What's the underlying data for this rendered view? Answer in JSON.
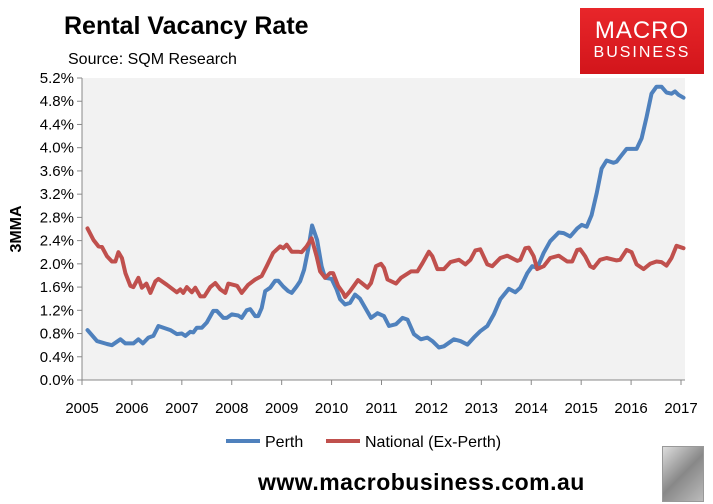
{
  "header": {
    "title": "Rental Vacancy Rate",
    "subtitle": "Source: SQM Research"
  },
  "logo": {
    "line1": "MACRO",
    "line2": "BUSINESS",
    "color": "#e01f25"
  },
  "footer": {
    "url": "www.macrobusiness.com.au"
  },
  "chart_data": {
    "type": "line",
    "title": "Rental Vacancy Rate",
    "xlabel": "",
    "ylabel": "3MMA",
    "xlim": [
      2005,
      2017.05
    ],
    "ylim": [
      0,
      5.2
    ],
    "x_ticks": [
      "2005",
      "2006",
      "2007",
      "2008",
      "2009",
      "2010",
      "2011",
      "2012",
      "2013",
      "2014",
      "2015",
      "2016",
      "2017"
    ],
    "y_ticks": [
      "0.0%",
      "0.4%",
      "0.8%",
      "1.2%",
      "1.6%",
      "2.0%",
      "2.4%",
      "2.8%",
      "3.2%",
      "3.6%",
      "4.0%",
      "4.4%",
      "4.8%",
      "5.2%"
    ],
    "grid": false,
    "legend_position": "bottom",
    "series": [
      {
        "name": "Perth",
        "color": "#4f81bd",
        "x": [
          2005.11,
          2005.3,
          2005.5,
          2005.6,
          2005.77,
          2005.87,
          2006.03,
          2006.13,
          2006.22,
          2006.33,
          2006.43,
          2006.53,
          2006.77,
          2006.9,
          2007.0,
          2007.07,
          2007.17,
          2007.23,
          2007.3,
          2007.4,
          2007.5,
          2007.63,
          2007.7,
          2007.83,
          2007.9,
          2008.0,
          2008.13,
          2008.2,
          2008.3,
          2008.37,
          2008.47,
          2008.53,
          2008.6,
          2008.67,
          2008.77,
          2008.87,
          2008.93,
          2009.03,
          2009.13,
          2009.2,
          2009.3,
          2009.37,
          2009.45,
          2009.53,
          2009.61,
          2009.71,
          2009.8,
          2009.87,
          2010.0,
          2010.1,
          2010.17,
          2010.27,
          2010.37,
          2010.47,
          2010.57,
          2010.79,
          2010.92,
          2011.05,
          2011.15,
          2011.29,
          2011.42,
          2011.52,
          2011.65,
          2011.79,
          2011.92,
          2012.02,
          2012.15,
          2012.25,
          2012.45,
          2012.58,
          2012.72,
          2012.85,
          2012.98,
          2013.12,
          2013.25,
          2013.38,
          2013.55,
          2013.68,
          2013.78,
          2013.92,
          2014.02,
          2014.12,
          2014.25,
          2014.38,
          2014.55,
          2014.65,
          2014.78,
          2014.92,
          2015.01,
          2015.11,
          2015.21,
          2015.31,
          2015.41,
          2015.51,
          2015.65,
          2015.71,
          2015.81,
          2015.91,
          2016.11,
          2016.21,
          2016.31,
          2016.41,
          2016.51,
          2016.61,
          2016.71,
          2016.81,
          2016.88,
          2016.95,
          2017.05
        ],
        "values": [
          0.86,
          0.67,
          0.62,
          0.6,
          0.7,
          0.63,
          0.63,
          0.7,
          0.63,
          0.73,
          0.76,
          0.93,
          0.86,
          0.79,
          0.8,
          0.76,
          0.83,
          0.82,
          0.9,
          0.9,
          0.99,
          1.19,
          1.19,
          1.07,
          1.07,
          1.13,
          1.11,
          1.07,
          1.2,
          1.22,
          1.1,
          1.1,
          1.24,
          1.53,
          1.59,
          1.71,
          1.71,
          1.61,
          1.53,
          1.5,
          1.61,
          1.7,
          1.9,
          2.24,
          2.66,
          2.41,
          1.96,
          1.76,
          1.74,
          1.56,
          1.39,
          1.3,
          1.33,
          1.47,
          1.4,
          1.07,
          1.15,
          1.1,
          0.93,
          0.96,
          1.07,
          1.04,
          0.79,
          0.7,
          0.73,
          0.67,
          0.56,
          0.58,
          0.7,
          0.67,
          0.61,
          0.73,
          0.84,
          0.93,
          1.13,
          1.39,
          1.57,
          1.51,
          1.59,
          1.84,
          1.96,
          1.93,
          2.19,
          2.39,
          2.54,
          2.53,
          2.47,
          2.61,
          2.67,
          2.64,
          2.84,
          3.21,
          3.64,
          3.78,
          3.74,
          3.76,
          3.87,
          3.98,
          3.98,
          4.16,
          4.53,
          4.93,
          5.05,
          5.05,
          4.95,
          4.93,
          4.97,
          4.91,
          4.86
        ]
      },
      {
        "name": "National (Ex-Perth)",
        "color": "#c0504d",
        "x": [
          2005.11,
          2005.23,
          2005.33,
          2005.4,
          2005.5,
          2005.6,
          2005.67,
          2005.73,
          2005.8,
          2005.87,
          2005.97,
          2006.03,
          2006.13,
          2006.2,
          2006.29,
          2006.37,
          2006.47,
          2006.53,
          2006.7,
          2006.9,
          2006.97,
          2007.03,
          2007.1,
          2007.2,
          2007.27,
          2007.37,
          2007.45,
          2007.57,
          2007.67,
          2007.77,
          2007.87,
          2007.93,
          2008.07,
          2008.11,
          2008.2,
          2008.33,
          2008.47,
          2008.6,
          2008.7,
          2008.83,
          2008.97,
          2009.03,
          2009.1,
          2009.2,
          2009.33,
          2009.4,
          2009.5,
          2009.6,
          2009.7,
          2009.77,
          2009.87,
          2009.97,
          2010.03,
          2010.13,
          2010.23,
          2010.27,
          2010.37,
          2010.53,
          2010.59,
          2010.72,
          2010.79,
          2010.89,
          2010.99,
          2011.05,
          2011.12,
          2011.29,
          2011.39,
          2011.59,
          2011.72,
          2011.82,
          2011.95,
          2012.02,
          2012.12,
          2012.25,
          2012.38,
          2012.55,
          2012.68,
          2012.78,
          2012.88,
          2012.98,
          2013.12,
          2013.22,
          2013.38,
          2013.52,
          2013.72,
          2013.78,
          2013.88,
          2013.95,
          2014.05,
          2014.12,
          2014.25,
          2014.38,
          2014.55,
          2014.72,
          2014.82,
          2014.92,
          2014.98,
          2015.08,
          2015.18,
          2015.25,
          2015.38,
          2015.51,
          2015.71,
          2015.78,
          2015.91,
          2016.01,
          2016.11,
          2016.25,
          2016.38,
          2016.51,
          2016.61,
          2016.71,
          2016.81,
          2016.91,
          2017.05
        ],
        "values": [
          2.61,
          2.41,
          2.3,
          2.29,
          2.13,
          2.04,
          2.04,
          2.2,
          2.1,
          1.84,
          1.62,
          1.6,
          1.76,
          1.59,
          1.66,
          1.5,
          1.7,
          1.74,
          1.64,
          1.51,
          1.56,
          1.5,
          1.6,
          1.51,
          1.59,
          1.44,
          1.44,
          1.6,
          1.67,
          1.56,
          1.5,
          1.66,
          1.63,
          1.62,
          1.5,
          1.64,
          1.73,
          1.79,
          1.96,
          2.19,
          2.3,
          2.27,
          2.33,
          2.21,
          2.21,
          2.2,
          2.3,
          2.44,
          2.13,
          1.87,
          1.76,
          1.84,
          1.84,
          1.62,
          1.5,
          1.43,
          1.53,
          1.72,
          1.68,
          1.59,
          1.67,
          1.96,
          2.0,
          1.93,
          1.73,
          1.66,
          1.76,
          1.87,
          1.87,
          2.01,
          2.21,
          2.13,
          1.91,
          1.91,
          2.03,
          2.07,
          1.99,
          2.07,
          2.23,
          2.25,
          1.99,
          1.96,
          2.1,
          2.14,
          2.05,
          2.07,
          2.27,
          2.28,
          2.13,
          1.91,
          1.96,
          2.1,
          2.14,
          2.04,
          2.04,
          2.24,
          2.25,
          2.13,
          1.96,
          1.93,
          2.07,
          2.1,
          2.06,
          2.07,
          2.24,
          2.2,
          1.99,
          1.91,
          2.0,
          2.04,
          2.03,
          1.97,
          2.1,
          2.31,
          2.27
        ]
      }
    ]
  }
}
